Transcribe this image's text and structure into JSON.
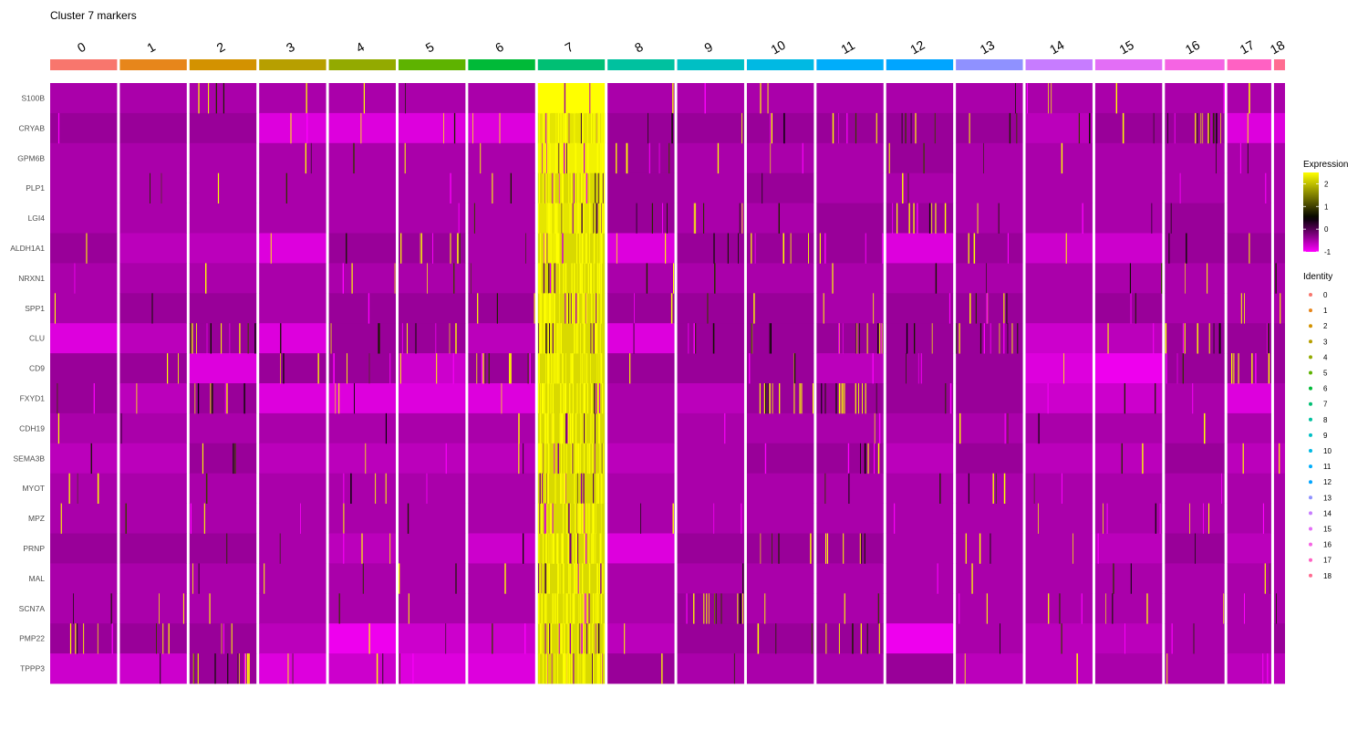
{
  "chart_data": {
    "type": "heatmap",
    "title": "Cluster 7 markers",
    "highlight_cluster": "7",
    "clusters": [
      {
        "label": "0",
        "color": "#F8766D"
      },
      {
        "label": "1",
        "color": "#E7861B"
      },
      {
        "label": "2",
        "color": "#D39200"
      },
      {
        "label": "3",
        "color": "#B79F00"
      },
      {
        "label": "4",
        "color": "#93AA00"
      },
      {
        "label": "5",
        "color": "#5EB300"
      },
      {
        "label": "6",
        "color": "#00BA38"
      },
      {
        "label": "7",
        "color": "#00BF74"
      },
      {
        "label": "8",
        "color": "#00C19F"
      },
      {
        "label": "9",
        "color": "#00BFC4"
      },
      {
        "label": "10",
        "color": "#00B9E3"
      },
      {
        "label": "11",
        "color": "#00ADFA"
      },
      {
        "label": "12",
        "color": "#00A5FF"
      },
      {
        "label": "13",
        "color": "#8F91FF"
      },
      {
        "label": "14",
        "color": "#C77CFF"
      },
      {
        "label": "15",
        "color": "#E36EF6"
      },
      {
        "label": "16",
        "color": "#F564E3"
      },
      {
        "label": "17",
        "color": "#FF61C3"
      },
      {
        "label": "18",
        "color": "#FF6C91"
      }
    ],
    "cluster_relative_sizes": [
      73,
      73,
      73,
      73,
      73,
      73,
      73,
      73,
      73,
      73,
      73,
      73,
      73,
      73,
      73,
      73,
      65,
      48,
      12
    ],
    "genes": [
      "S100B",
      "CRYAB",
      "GPM6B",
      "PLP1",
      "LGI4",
      "ALDH1A1",
      "NRXN1",
      "SPP1",
      "CLU",
      "CD9",
      "FXYD1",
      "CDH19",
      "SEMA3B",
      "MYOT",
      "MPZ",
      "PRNP",
      "MAL",
      "SCN7A",
      "PMP22",
      "TPPP3"
    ],
    "mean_scaled_expression": [
      [
        -0.5,
        -0.5,
        -0.5,
        -0.5,
        -0.5,
        -0.5,
        -0.5,
        2.5,
        -0.5,
        -0.5,
        -0.5,
        -0.5,
        -0.5,
        -0.5,
        -0.5,
        -0.5,
        -0.5,
        -0.5,
        -0.5
      ],
      [
        -0.3,
        -0.3,
        -0.3,
        -0.8,
        -0.8,
        -0.8,
        -0.8,
        2.3,
        -0.2,
        -0.3,
        -0.2,
        0.0,
        0.1,
        -0.2,
        -0.6,
        -0.4,
        0.5,
        -0.8,
        -0.8
      ],
      [
        -0.5,
        -0.5,
        -0.5,
        -0.5,
        -0.5,
        -0.5,
        -0.5,
        2.4,
        0.0,
        -0.5,
        -0.5,
        -0.5,
        -0.4,
        -0.5,
        -0.5,
        -0.5,
        -0.5,
        -0.5,
        -0.5
      ],
      [
        -0.5,
        -0.5,
        -0.5,
        -0.5,
        -0.5,
        -0.5,
        -0.5,
        2.2,
        -0.4,
        -0.5,
        -0.4,
        -0.5,
        -0.5,
        -0.5,
        -0.5,
        -0.5,
        -0.5,
        -0.5,
        -0.5
      ],
      [
        -0.5,
        -0.5,
        -0.5,
        -0.5,
        -0.5,
        -0.5,
        -0.5,
        2.3,
        0.1,
        -0.5,
        -0.5,
        -0.3,
        0.4,
        -0.5,
        -0.5,
        -0.5,
        -0.4,
        -0.5,
        -0.5
      ],
      [
        -0.3,
        -0.6,
        -0.6,
        -0.8,
        -0.3,
        0.1,
        -0.5,
        1.8,
        -0.8,
        -0.1,
        0.1,
        0.0,
        -0.8,
        0.2,
        -0.7,
        -0.7,
        -0.2,
        -0.3,
        -0.3
      ],
      [
        -0.5,
        -0.5,
        -0.5,
        -0.5,
        -0.5,
        -0.5,
        -0.5,
        1.9,
        -0.5,
        -0.5,
        -0.5,
        -0.5,
        -0.5,
        -0.5,
        -0.5,
        -0.5,
        -0.5,
        -0.5,
        -0.5
      ],
      [
        -0.5,
        -0.3,
        -0.4,
        -0.5,
        -0.3,
        -0.3,
        -0.2,
        1.9,
        -0.3,
        -0.4,
        -0.4,
        -0.5,
        -0.4,
        -0.1,
        -0.5,
        -0.4,
        -0.5,
        -0.5,
        -0.5
      ],
      [
        -0.8,
        -0.6,
        0.3,
        -0.8,
        -0.3,
        0.2,
        -0.6,
        1.5,
        -0.8,
        0.1,
        0.2,
        0.4,
        -0.2,
        0.0,
        -0.7,
        -0.6,
        0.3,
        0.2,
        -0.3
      ],
      [
        -0.4,
        -0.2,
        -0.8,
        0.1,
        0.0,
        -0.7,
        0.0,
        1.3,
        -0.3,
        -0.4,
        -0.2,
        -0.6,
        -0.1,
        -0.4,
        -0.8,
        -0.9,
        0.1,
        0.6,
        0.2
      ],
      [
        -0.2,
        -0.6,
        0.3,
        -0.8,
        -0.8,
        -0.8,
        -0.8,
        2.0,
        -0.5,
        -0.6,
        0.2,
        0.4,
        -0.2,
        -0.4,
        -0.7,
        -0.7,
        -0.5,
        -0.8,
        -0.5
      ],
      [
        -0.5,
        -0.5,
        -0.5,
        -0.5,
        -0.5,
        -0.5,
        -0.5,
        1.9,
        -0.5,
        -0.5,
        -0.5,
        -0.5,
        -0.5,
        -0.5,
        -0.5,
        -0.5,
        -0.5,
        -0.5,
        -0.5
      ],
      [
        -0.6,
        -0.6,
        0.0,
        -0.6,
        -0.6,
        -0.6,
        -0.6,
        1.9,
        -0.6,
        -0.5,
        -0.4,
        0.3,
        -0.6,
        -0.4,
        -0.6,
        -0.6,
        -0.4,
        -0.6,
        -0.6
      ],
      [
        -0.5,
        -0.5,
        -0.5,
        -0.5,
        -0.5,
        -0.5,
        -0.5,
        1.9,
        -0.5,
        -0.5,
        -0.5,
        -0.5,
        -0.5,
        -0.5,
        -0.5,
        -0.5,
        -0.5,
        -0.5,
        -0.5
      ],
      [
        -0.5,
        -0.5,
        -0.5,
        -0.5,
        -0.5,
        -0.5,
        -0.5,
        1.9,
        -0.5,
        -0.5,
        -0.5,
        -0.5,
        -0.5,
        -0.5,
        -0.5,
        -0.5,
        -0.5,
        -0.5,
        -0.5
      ],
      [
        -0.1,
        -0.3,
        -0.3,
        -0.5,
        -0.6,
        -0.5,
        -0.7,
        1.8,
        -0.8,
        -0.4,
        -0.2,
        0.2,
        -0.5,
        -0.5,
        -0.5,
        -0.6,
        -0.4,
        -0.6,
        -0.5
      ],
      [
        -0.5,
        -0.5,
        -0.5,
        -0.5,
        -0.5,
        -0.5,
        -0.5,
        1.8,
        -0.5,
        -0.5,
        -0.5,
        -0.5,
        -0.5,
        -0.5,
        -0.5,
        -0.5,
        -0.5,
        -0.5,
        -0.5
      ],
      [
        -0.5,
        -0.5,
        -0.5,
        -0.5,
        -0.5,
        -0.5,
        -0.5,
        2.2,
        -0.5,
        0.9,
        -0.5,
        -0.5,
        -0.5,
        -0.5,
        -0.5,
        -0.5,
        -0.5,
        -0.5,
        -0.5
      ],
      [
        -0.1,
        -0.2,
        -0.1,
        -0.6,
        -0.9,
        -0.7,
        -0.7,
        1.5,
        -0.6,
        -0.4,
        0.0,
        0.3,
        -0.9,
        -0.5,
        -0.6,
        -0.6,
        -0.5,
        -0.5,
        -0.1
      ],
      [
        -0.7,
        -0.7,
        0.2,
        -0.8,
        -0.7,
        -0.8,
        -0.8,
        1.7,
        0.0,
        -0.5,
        -0.5,
        -0.5,
        -0.3,
        -0.6,
        -0.6,
        -0.5,
        -0.5,
        -0.6,
        -0.6
      ]
    ],
    "colorbar": {
      "title": "Expression",
      "ticks": [
        2,
        1,
        0,
        -1
      ],
      "range": [
        -1,
        2.5
      ],
      "colors": [
        "#FF00FF",
        "#000000",
        "#FFFF00"
      ]
    },
    "identity_legend_title": "Identity"
  }
}
